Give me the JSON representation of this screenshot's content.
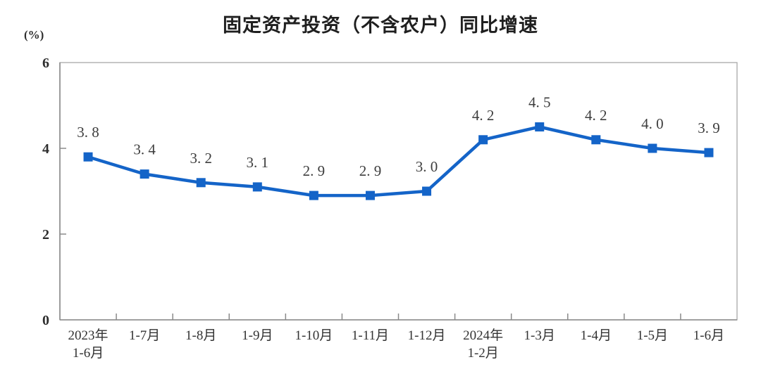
{
  "chart_data": {
    "type": "line",
    "title": "固定资产投资（不含农户）同比增速",
    "unit_label": "(%)",
    "categories": [
      "2023年\n1-6月",
      "1-7月",
      "1-8月",
      "1-9月",
      "1-10月",
      "1-11月",
      "1-12月",
      "2024年\n1-2月",
      "1-3月",
      "1-4月",
      "1-5月",
      "1-6月"
    ],
    "values": [
      3.8,
      3.4,
      3.2,
      3.1,
      2.9,
      2.9,
      3.0,
      4.2,
      4.5,
      4.2,
      4.0,
      3.9
    ],
    "point_labels": [
      "3. 8",
      "3. 4",
      "3. 2",
      "3. 1",
      "2. 9",
      "2. 9",
      "3. 0",
      "4. 2",
      "4. 5",
      "4. 2",
      "4. 0",
      "3. 9"
    ],
    "xlabel": "",
    "ylabel": "",
    "ylim": [
      0,
      6
    ],
    "yticks": [
      0,
      2,
      4,
      6
    ],
    "grid": false,
    "legend_position": "none",
    "line_color": "#1464C8",
    "marker": "square"
  }
}
